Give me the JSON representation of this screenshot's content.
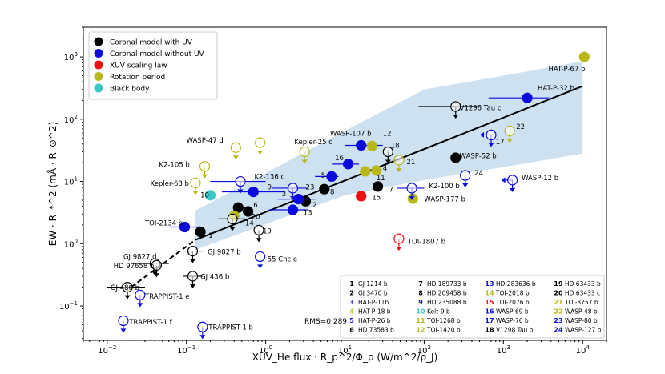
{
  "chart_data": {
    "type": "scatter",
    "title": "",
    "xlabel": "XUV_He flux · R_p^2/Φ_p (W/m^2/ρ_J)",
    "ylabel": "EW · R_*^2 (mÅ · R_⊙^2)",
    "x_scale": "log",
    "y_scale": "log",
    "xlim": [
      0.005,
      20000
    ],
    "ylim": [
      0.028,
      3000
    ],
    "x_ticks": [
      {
        "v": 0.01,
        "b": "10",
        "e": "−2"
      },
      {
        "v": 0.1,
        "b": "10",
        "e": "−1"
      },
      {
        "v": 1,
        "b": "10",
        "e": "0"
      },
      {
        "v": 10,
        "b": "10",
        "e": "1"
      },
      {
        "v": 100,
        "b": "10",
        "e": "2"
      },
      {
        "v": 1000,
        "b": "10",
        "e": "3"
      },
      {
        "v": 10000,
        "b": "10",
        "e": "4"
      }
    ],
    "y_ticks": [
      {
        "v": 0.1,
        "b": "10",
        "e": "−1"
      },
      {
        "v": 1,
        "b": "10",
        "e": "0"
      },
      {
        "v": 10,
        "b": "10",
        "e": "1"
      },
      {
        "v": 100,
        "b": "10",
        "e": "2"
      },
      {
        "v": 1000,
        "b": "10",
        "e": "3"
      }
    ],
    "legend": {
      "placement": "top-left",
      "entries": [
        {
          "label": "Coronal model with UV",
          "color": "#000000"
        },
        {
          "label": "Coronal model without UV",
          "color": "#0a0adc"
        },
        {
          "label": "XUV scaling law",
          "color": "#ee1111"
        },
        {
          "label": "Rotation period",
          "color": "#b8b81a"
        },
        {
          "label": "Black body",
          "color": "#3cc8c8"
        }
      ]
    },
    "fit_line": [
      [
        0.13,
        1.15
      ],
      [
        10000,
        340
      ]
    ],
    "fit_extrapolation": [
      [
        0.02,
        0.2
      ],
      [
        0.13,
        1.15
      ]
    ],
    "band": [
      [
        0.13,
        0.8
      ],
      [
        10,
        6
      ],
      [
        100,
        10.5
      ],
      [
        1000,
        17
      ],
      [
        10000,
        28
      ],
      [
        10000,
        850
      ],
      [
        1000,
        500
      ],
      [
        100,
        300
      ],
      [
        10,
        65
      ],
      [
        0.13,
        3.4
      ]
    ],
    "rms_label": "RMS=0.289",
    "points": [
      {
        "x": 0.45,
        "y": 3.8,
        "c": "#000000",
        "f": "filled"
      },
      {
        "x": 0.6,
        "y": 3.3,
        "c": "#000000",
        "f": "filled"
      },
      {
        "x": 0.15,
        "y": 1.55,
        "c": "#000000",
        "f": "filled"
      },
      {
        "x": 3.2,
        "y": 4.8,
        "c": "#000000",
        "f": "filled"
      },
      {
        "x": 5.5,
        "y": 7.5,
        "c": "#000000",
        "f": "filled"
      },
      {
        "x": 26,
        "y": 8.3,
        "c": "#000000",
        "f": "filled"
      },
      {
        "x": 250,
        "y": 24,
        "c": "#000000",
        "f": "filled"
      },
      {
        "x": 0.095,
        "y": 1.85,
        "c": "#0a0adc",
        "f": "filled",
        "xerr": [
          0.06,
          0.15
        ]
      },
      {
        "x": 0.7,
        "y": 6.8,
        "c": "#0a0adc",
        "f": "filled",
        "xerr": [
          0.28,
          1.7
        ]
      },
      {
        "x": 2.6,
        "y": 5.2,
        "c": "#0a0adc",
        "f": "filled",
        "xerr": [
          1.4,
          4.2
        ]
      },
      {
        "x": 2.2,
        "y": 3.5,
        "c": "#0a0adc",
        "f": "filled",
        "xerr": [
          1.1,
          3.4
        ]
      },
      {
        "x": 6.8,
        "y": 12,
        "c": "#0a0adc",
        "f": "filled",
        "xerr": [
          4.2,
          8.3
        ]
      },
      {
        "x": 11,
        "y": 19,
        "c": "#0a0adc",
        "f": "filled",
        "xerr": [
          7,
          15
        ]
      },
      {
        "x": 16,
        "y": 38,
        "c": "#0a0adc",
        "f": "filled",
        "xerr": [
          10,
          30
        ]
      },
      {
        "x": 2000,
        "y": 220,
        "c": "#0a0adc",
        "f": "filled",
        "xerr": [
          650,
          3800
        ]
      },
      {
        "x": 16,
        "y": 5.8,
        "c": "#ee1111",
        "f": "filled"
      },
      {
        "x": 0.4,
        "y": 2.8,
        "c": "#b8b81a",
        "f": "filled"
      },
      {
        "x": 18,
        "y": 14.5,
        "c": "#b8b81a",
        "f": "filled"
      },
      {
        "x": 25,
        "y": 15,
        "c": "#b8b81a",
        "f": "filled"
      },
      {
        "x": 22,
        "y": 37,
        "c": "#b8b81a",
        "f": "filled"
      },
      {
        "x": 72,
        "y": 5.3,
        "c": "#b8b81a",
        "f": "filled"
      },
      {
        "x": 10500,
        "y": 1000,
        "c": "#b8b81a",
        "f": "filled"
      },
      {
        "x": 0.2,
        "y": 6.0,
        "c": "#3cc8c8",
        "f": "filled"
      },
      {
        "x": 0.42,
        "y": 35,
        "c": "#b8b81a",
        "f": "open",
        "ul": true
      },
      {
        "x": 0.85,
        "y": 42,
        "c": "#b8b81a",
        "f": "open",
        "ul": true
      },
      {
        "x": 3.1,
        "y": 30,
        "c": "#b8b81a",
        "f": "open",
        "ul": true
      },
      {
        "x": 0.17,
        "y": 17.5,
        "c": "#b8b81a",
        "f": "open",
        "ul": true
      },
      {
        "x": 0.13,
        "y": 9.5,
        "c": "#b8b81a",
        "f": "open",
        "ul": true
      },
      {
        "x": 48,
        "y": 22,
        "c": "#b8b81a",
        "f": "open",
        "ul": true
      },
      {
        "x": 1200,
        "y": 65,
        "c": "#b8b81a",
        "f": "open",
        "ul": true
      },
      {
        "x": 0.48,
        "y": 10,
        "c": "#0a0adc",
        "f": "open",
        "ul": true,
        "xerr": [
          0.2,
          1.0
        ]
      },
      {
        "x": 2.2,
        "y": 7.8,
        "c": "#0a0adc",
        "f": "open",
        "ul": true,
        "xerr": [
          1.2,
          3.3
        ]
      },
      {
        "x": 70,
        "y": 7.8,
        "c": "#0a0adc",
        "f": "open",
        "ul": true,
        "xerr": [
          45,
          100
        ]
      },
      {
        "x": 330,
        "y": 12.5,
        "c": "#0a0adc",
        "f": "open",
        "ul": true
      },
      {
        "x": 700,
        "y": 56,
        "c": "#0a0adc",
        "f": "open",
        "ul": true,
        "la": true
      },
      {
        "x": 1300,
        "y": 10.5,
        "c": "#0a0adc",
        "f": "open",
        "ul": true,
        "la": true
      },
      {
        "x": 0.85,
        "y": 0.62,
        "c": "#0a0adc",
        "f": "open",
        "ul": true
      },
      {
        "x": 0.026,
        "y": 0.15,
        "c": "#0a0adc",
        "f": "open",
        "ul": true
      },
      {
        "x": 0.016,
        "y": 0.058,
        "c": "#0a0adc",
        "f": "open",
        "ul": true
      },
      {
        "x": 0.16,
        "y": 0.046,
        "c": "#0a0adc",
        "f": "open",
        "ul": true
      },
      {
        "x": 48,
        "y": 1.2,
        "c": "#ee1111",
        "f": "open",
        "ul": true
      },
      {
        "x": 0.04,
        "y": 0.48,
        "c": "#000000",
        "f": "open",
        "ul": true,
        "xerr": [
          0.02,
          0.06
        ]
      },
      {
        "x": 0.042,
        "y": 0.45,
        "c": "#000000",
        "f": "open",
        "ul": true
      },
      {
        "x": 0.12,
        "y": 0.76,
        "c": "#000000",
        "f": "open",
        "ul": true,
        "xerr": [
          0.09,
          0.17
        ]
      },
      {
        "x": 0.12,
        "y": 0.3,
        "c": "#000000",
        "f": "open",
        "ul": true,
        "xerr": [
          0.09,
          0.16
        ]
      },
      {
        "x": 0.018,
        "y": 0.2,
        "c": "#000000",
        "f": "open",
        "ul": true,
        "xerr": [
          0.01,
          0.03
        ]
      },
      {
        "x": 0.38,
        "y": 2.5,
        "c": "#000000",
        "f": "open",
        "ul": true,
        "xerr": [
          0.25,
          0.55
        ]
      },
      {
        "x": 0.82,
        "y": 1.65,
        "c": "#000000",
        "f": "open",
        "ul": true
      },
      {
        "x": 35,
        "y": 30,
        "c": "#000000",
        "f": "open",
        "ul": true
      },
      {
        "x": 250,
        "y": 160,
        "c": "#000000",
        "f": "open",
        "ul": true,
        "xerr": [
          85,
          500
        ]
      }
    ],
    "labels": [
      {
        "t": "HAT-P-67 b",
        "x": 3700,
        "y": 590,
        "a": "start"
      },
      {
        "t": "HAT-P-32 b",
        "x": 2700,
        "y": 290,
        "a": "start"
      },
      {
        "t": "V1298 Tau c",
        "x": 280,
        "y": 140,
        "a": "start"
      },
      {
        "t": "22",
        "x": 1450,
        "y": 70,
        "a": "start"
      },
      {
        "t": "17",
        "x": 800,
        "y": 40,
        "a": "start"
      },
      {
        "t": "WASP-47 d",
        "x": 0.1,
        "y": 42,
        "a": "start"
      },
      {
        "t": "Kepler-25 c",
        "x": 2.3,
        "y": 40,
        "a": "start"
      },
      {
        "t": "WASP-107 b",
        "x": 6.5,
        "y": 54,
        "a": "start"
      },
      {
        "t": "12",
        "x": 30,
        "y": 54,
        "a": "start"
      },
      {
        "t": "18",
        "x": 38,
        "y": 35,
        "a": "start"
      },
      {
        "t": "21",
        "x": 60,
        "y": 19,
        "a": "start"
      },
      {
        "t": "WASP-52 b",
        "x": 280,
        "y": 23.5,
        "a": "start"
      },
      {
        "t": "16",
        "x": 7.5,
        "y": 22,
        "a": "start"
      },
      {
        "t": "4",
        "x": 30,
        "y": 15,
        "a": "start"
      },
      {
        "t": "11",
        "x": 25,
        "y": 10.5,
        "a": "start"
      },
      {
        "t": "24",
        "x": 430,
        "y": 12.5,
        "a": "start"
      },
      {
        "t": "WASP-12 b",
        "x": 1700,
        "y": 10.5,
        "a": "start"
      },
      {
        "t": "K2-100 b",
        "x": 115,
        "y": 7.8,
        "a": "start"
      },
      {
        "t": "WASP-177 b",
        "x": 100,
        "y": 4.8,
        "a": "start"
      },
      {
        "t": "7",
        "x": 36,
        "y": 6.8,
        "a": "start"
      },
      {
        "t": "15",
        "x": 22,
        "y": 5.1,
        "a": "start"
      },
      {
        "t": "8",
        "x": 6.5,
        "y": 6.2,
        "a": "start"
      },
      {
        "t": "23",
        "x": 3.2,
        "y": 7.5,
        "a": "start"
      },
      {
        "t": "5",
        "x": 5,
        "y": 11.5,
        "a": "start"
      },
      {
        "t": "3",
        "x": 1.6,
        "y": 5.8,
        "a": "start"
      },
      {
        "t": "2",
        "x": 3.9,
        "y": 3.8,
        "a": "start"
      },
      {
        "t": "13",
        "x": 3.0,
        "y": 2.9,
        "a": "start"
      },
      {
        "t": "K2-105 b",
        "x": 0.045,
        "y": 17,
        "a": "start"
      },
      {
        "t": "K2-136 c",
        "x": 0.72,
        "y": 11,
        "a": "start"
      },
      {
        "t": "Kepler-68 b",
        "x": 0.035,
        "y": 8.5,
        "a": "start"
      },
      {
        "t": "9",
        "x": 1.05,
        "y": 7.5,
        "a": "start"
      },
      {
        "t": "10",
        "x": 0.15,
        "y": 5.5,
        "a": "start"
      },
      {
        "t": "6",
        "x": 0.7,
        "y": 3.8,
        "a": "start"
      },
      {
        "t": "20",
        "x": 0.66,
        "y": 2.5,
        "a": "start"
      },
      {
        "t": "14",
        "x": 0.55,
        "y": 1.95,
        "a": "start"
      },
      {
        "t": "TOI-2134 b",
        "x": 0.03,
        "y": 1.95,
        "a": "start"
      },
      {
        "t": "1",
        "x": 0.19,
        "y": 1.25,
        "a": "start"
      },
      {
        "t": "19",
        "x": 0.92,
        "y": 1.45,
        "a": "start"
      },
      {
        "t": "TOI-1807 b",
        "x": 62,
        "y": 1.0,
        "a": "start"
      },
      {
        "t": "GJ 9827 d",
        "x": 0.016,
        "y": 0.57,
        "a": "start"
      },
      {
        "t": "GJ 9827 b",
        "x": 0.185,
        "y": 0.68,
        "a": "start"
      },
      {
        "t": "HD 97658 b",
        "x": 0.012,
        "y": 0.4,
        "a": "start"
      },
      {
        "t": "55 Cnc e",
        "x": 1.05,
        "y": 0.52,
        "a": "start"
      },
      {
        "t": "GJ 436 b",
        "x": 0.15,
        "y": 0.27,
        "a": "start"
      },
      {
        "t": "GJ 486 b",
        "x": 0.011,
        "y": 0.18,
        "a": "start"
      },
      {
        "t": "TRAPPIST-1 e",
        "x": 0.03,
        "y": 0.13,
        "a": "start"
      },
      {
        "t": "TRAPPIST-1 f",
        "x": 0.019,
        "y": 0.051,
        "a": "start"
      },
      {
        "t": "TRAPPIST-1 b",
        "x": 0.19,
        "y": 0.042,
        "a": "start"
      }
    ],
    "key": [
      {
        "n": "1",
        "name": "GJ 1214 b",
        "c": "#000000"
      },
      {
        "n": "2",
        "name": "GJ 3470 b",
        "c": "#000000"
      },
      {
        "n": "3",
        "name": "HAT-P-11b",
        "c": "#0a0adc"
      },
      {
        "n": "4",
        "name": "HAT-P-18 b",
        "c": "#b8b81a"
      },
      {
        "n": "5",
        "name": "HAT-P-26 b",
        "c": "#0a0adc"
      },
      {
        "n": "6",
        "name": "HD 73583 b",
        "c": "#000000"
      },
      {
        "n": "7",
        "name": "HD 189733 b",
        "c": "#000000"
      },
      {
        "n": "8",
        "name": "HD 209458 b",
        "c": "#000000"
      },
      {
        "n": "9",
        "name": "HD 235088 b",
        "c": "#0a0adc"
      },
      {
        "n": "10",
        "name": "Kelt-9 b",
        "c": "#3cc8c8"
      },
      {
        "n": "11",
        "name": "TOI-1268 b",
        "c": "#b8b81a"
      },
      {
        "n": "12",
        "name": "TOI-1420 b",
        "c": "#b8b81a"
      },
      {
        "n": "13",
        "name": "HD 283636 b",
        "c": "#0a0adc"
      },
      {
        "n": "14",
        "name": "TOI-2018 b",
        "c": "#b8b81a"
      },
      {
        "n": "15",
        "name": "TOI-2076 b",
        "c": "#ee1111"
      },
      {
        "n": "16",
        "name": "WASP-69 b",
        "c": "#0a0adc"
      },
      {
        "n": "17",
        "name": "WASP-76 b",
        "c": "#0a0adc"
      },
      {
        "n": "18",
        "name": "V1298 Tau b",
        "c": "#000000"
      },
      {
        "n": "19",
        "name": "HD 63433 b",
        "c": "#000000"
      },
      {
        "n": "20",
        "name": "HD 63433 c",
        "c": "#000000"
      },
      {
        "n": "21",
        "name": "TOI-3757 b",
        "c": "#b8b81a"
      },
      {
        "n": "22",
        "name": "WASP-48 b",
        "c": "#b8b81a"
      },
      {
        "n": "23",
        "name": "WASP-80 b",
        "c": "#0a0adc"
      },
      {
        "n": "24",
        "name": "WASP-127 b",
        "c": "#0a0adc"
      }
    ]
  }
}
